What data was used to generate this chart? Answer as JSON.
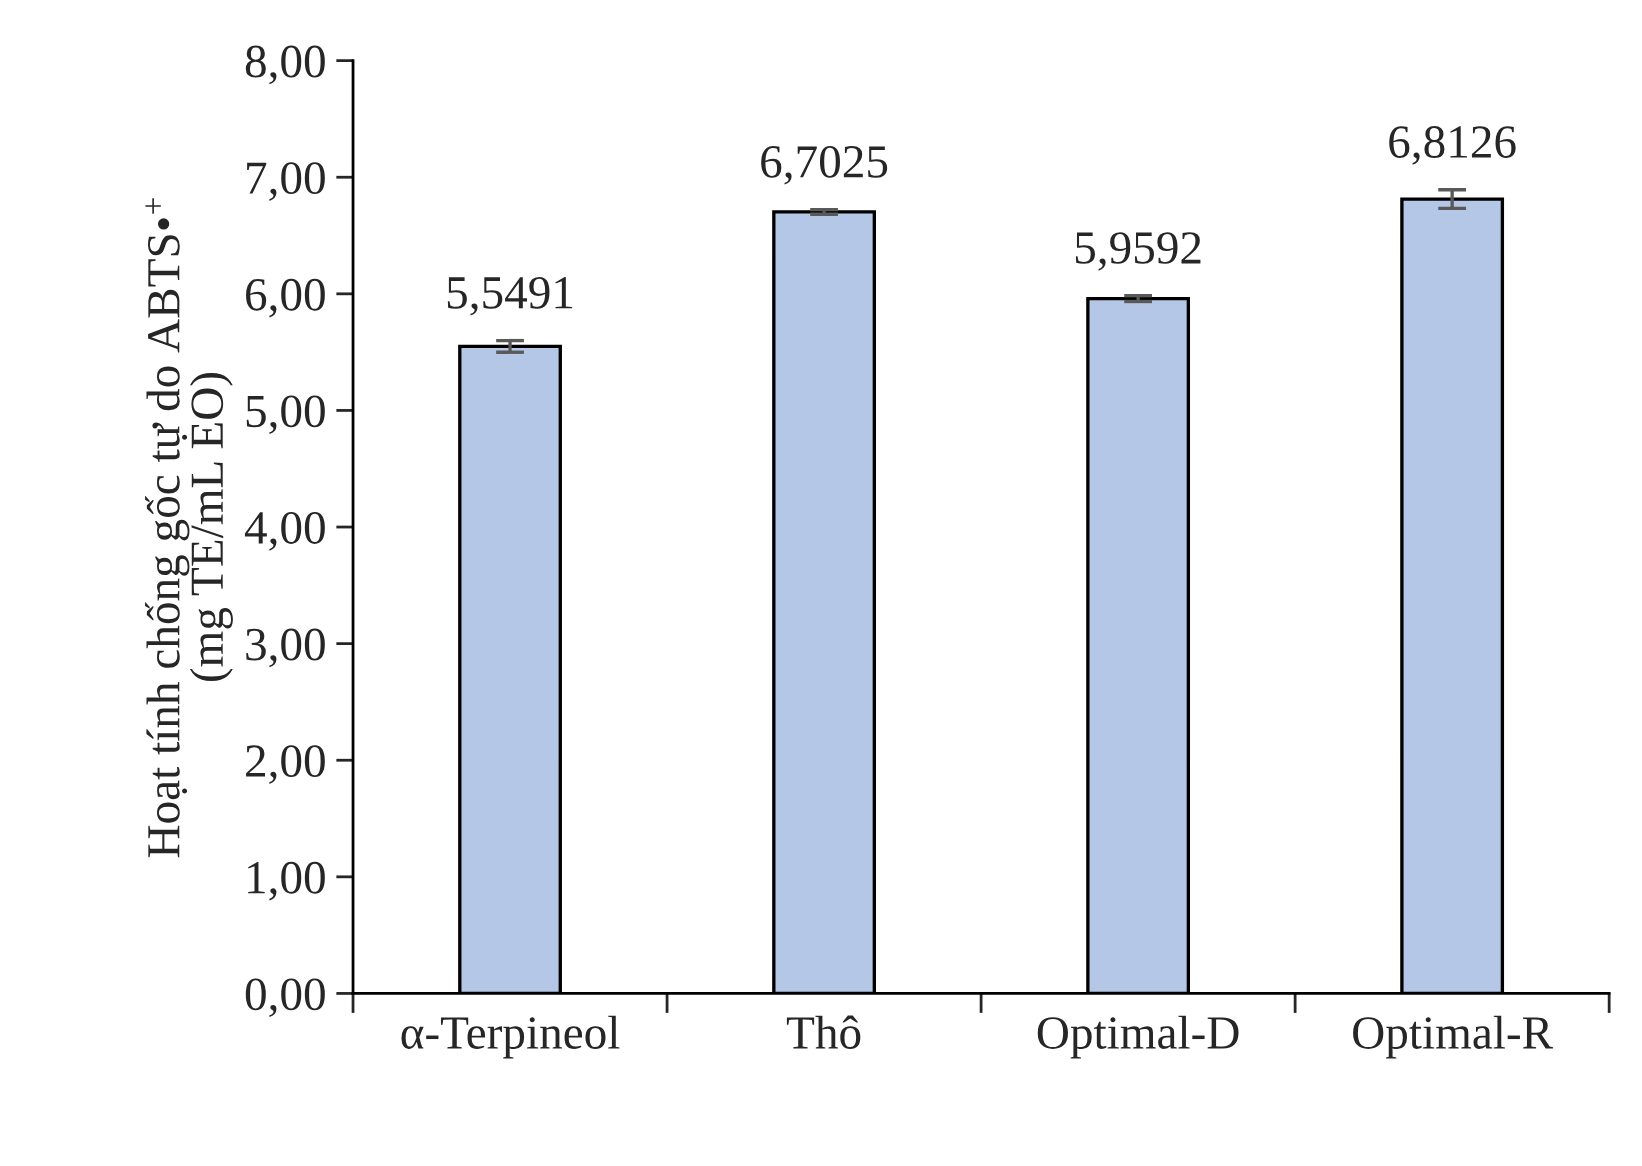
{
  "chart_data": {
    "type": "bar",
    "ylabel": "Hoạt tính chống gốc tự do ABTS•$^{+}$\n(mg TE/mL EO)",
    "categories": [
      "α-Terpineol",
      "Thô",
      "Optimal-D",
      "Optimal-R"
    ],
    "values": [
      5.5491,
      6.7025,
      5.9592,
      6.8126
    ],
    "errors": [
      0.05,
      0.02,
      0.025,
      0.08
    ],
    "value_labels": [
      "5,5491",
      "6,7025",
      "5,9592",
      "6,8126"
    ],
    "color": "#b4c7e7",
    "ylim": [
      0,
      8
    ],
    "yticks": [
      {
        "value": 0,
        "label": "0,00"
      },
      {
        "value": 1,
        "label": "1,00"
      },
      {
        "value": 2,
        "label": "2,00"
      },
      {
        "value": 3,
        "label": "3,00"
      },
      {
        "value": 4,
        "label": "4,00"
      },
      {
        "value": 5,
        "label": "5,00"
      },
      {
        "value": 6,
        "label": "6,00"
      },
      {
        "value": 7,
        "label": "7,00"
      },
      {
        "value": 8,
        "label": "8,00"
      }
    ],
    "grid": false,
    "legend": false
  }
}
